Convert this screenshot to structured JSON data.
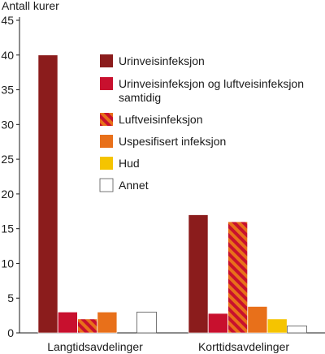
{
  "chart_data": {
    "type": "bar",
    "ylabel": "Antall kurer",
    "ylim": [
      0,
      45
    ],
    "yticks": [
      0,
      5,
      10,
      15,
      20,
      25,
      30,
      35,
      40,
      45
    ],
    "grid": false,
    "legend_position": "right",
    "categories": [
      "Langtidsavdelinger",
      "Korttidsavdelinger"
    ],
    "series": [
      {
        "name": "Urinveisinfeksjon",
        "values": [
          40,
          17
        ],
        "color": "#8b1c1c",
        "pattern": "solid"
      },
      {
        "name": "Urinveisinfeksjon og luftveisinfeksjon samtidig",
        "values": [
          3,
          2.8
        ],
        "color": "#c8102e",
        "pattern": "solid"
      },
      {
        "name": "Luftveisinfeksjon",
        "values": [
          2,
          16
        ],
        "color": "#e8701a",
        "stripe_color": "#c8102e",
        "pattern": "striped"
      },
      {
        "name": "Uspesifisert infeksjon",
        "values": [
          3,
          3.8
        ],
        "color": "#e8701a",
        "pattern": "solid"
      },
      {
        "name": "Hud",
        "values": [
          0,
          2
        ],
        "color": "#f5c400",
        "pattern": "solid"
      },
      {
        "name": "Annet",
        "values": [
          3,
          1
        ],
        "color": "#ffffff",
        "pattern": "outline"
      }
    ]
  }
}
